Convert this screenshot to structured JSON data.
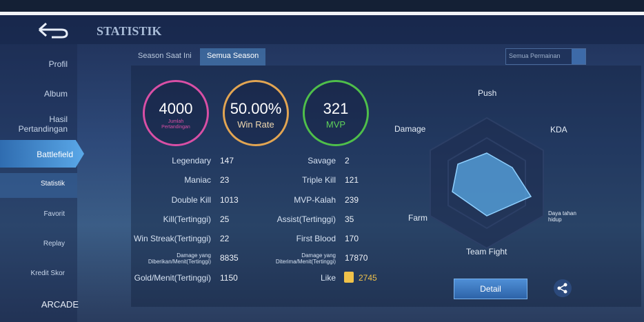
{
  "header": {
    "title": "STATISTIK"
  },
  "sidebar": {
    "items": [
      "Profil",
      "Album",
      "Hasil Pertandingan",
      "Battlefield",
      "Statistik",
      "Favorit",
      "Replay",
      "Kredit Skor",
      "ARCADE"
    ]
  },
  "tabs": [
    "Season Saat Ini",
    "Semua Season"
  ],
  "dropdown": "Semua Permainan",
  "circles": [
    {
      "value": "4000",
      "label": "Jumlah Pertandingan"
    },
    {
      "value": "50.00%",
      "label": "Win Rate"
    },
    {
      "value": "321",
      "label": "MVP"
    }
  ],
  "stats": {
    "left": [
      {
        "label": "Legendary",
        "value": "147"
      },
      {
        "label": "Maniac",
        "value": "23"
      },
      {
        "label": "Double Kill",
        "value": "1013"
      },
      {
        "label": "Kill(Tertinggi)",
        "value": "25"
      },
      {
        "label": "Win Streak(Tertinggi)",
        "value": "22"
      },
      {
        "label": "Damage yang Diberikan/Menit(Tertinggi)",
        "value": "8835"
      },
      {
        "label": "Gold/Menit(Tertinggi)",
        "value": "1150"
      }
    ],
    "right": [
      {
        "label": "Savage",
        "value": "2"
      },
      {
        "label": "Triple Kill",
        "value": "121"
      },
      {
        "label": "MVP-Kalah",
        "value": "239"
      },
      {
        "label": "Assist(Tertinggi)",
        "value": "35"
      },
      {
        "label": "First Blood",
        "value": "170"
      },
      {
        "label": "Damage yang Diterima/Menit(Tertinggi)",
        "value": "17870"
      },
      {
        "label": "Like",
        "value": "2745"
      }
    ]
  },
  "radar": {
    "labels": [
      "Push",
      "KDA",
      "Daya tahan hidup",
      "Team Fight",
      "Farm",
      "Damage"
    ]
  },
  "buttons": {
    "detail": "Detail"
  }
}
